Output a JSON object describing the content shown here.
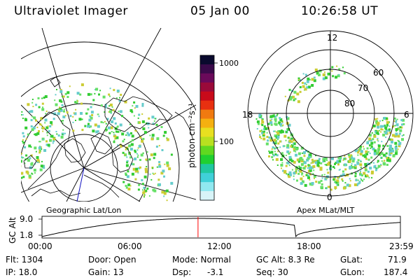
{
  "header": {
    "title": "Ultraviolet Imager",
    "date": "05 Jan 00",
    "time": "10:26:58 UT"
  },
  "colors": {
    "aurora_green": "#33cc33",
    "aurora_light": "#66e066",
    "aurora_cyan": "#66cccc",
    "aurora_yellow": "#cccc33",
    "line": "#000000",
    "marker": "#ff0000"
  },
  "colorbar": {
    "label": "photon cm⁻²s⁻¹",
    "ticks": [
      "1000",
      "100"
    ],
    "colors": [
      "#0a0a2e",
      "#3a0a4a",
      "#6a0a5a",
      "#9a0a3a",
      "#c80a1a",
      "#e83010",
      "#f07a10",
      "#f5b010",
      "#e8e020",
      "#b8e020",
      "#60d820",
      "#20d030",
      "#20c8a0",
      "#40d0d8",
      "#90e8f0",
      "#d8f4f8"
    ]
  },
  "map_labels": {
    "geo": "Geographic Lat/Lon",
    "apex": "Apex MLat/MLT"
  },
  "polar_labels": {
    "mlt": [
      "12",
      "18",
      "6",
      "0"
    ],
    "lat": [
      "60",
      "70",
      "80"
    ]
  },
  "timeline": {
    "y_axis_label": "GC Alt",
    "y_top": "9.0",
    "y_bottom": "1.8",
    "times": [
      "00:00",
      "06:00",
      "12:00",
      "18:00",
      "23:59"
    ],
    "marker_hour": 10.45
  },
  "info": {
    "flt": "Flt: 1304",
    "door": "Door: Open",
    "mode": "Mode: Normal",
    "gc_alt": "GC Alt: 8.3 Re",
    "glat_label": "GLat:",
    "glat": "71.9",
    "ip": "IP: 18.0",
    "gain": "Gain: 13",
    "dsp_label": "Dsp:",
    "dsp": "-3.1",
    "seq": "Seq: 30",
    "glon_label": "GLon:",
    "glon": "187.4"
  }
}
